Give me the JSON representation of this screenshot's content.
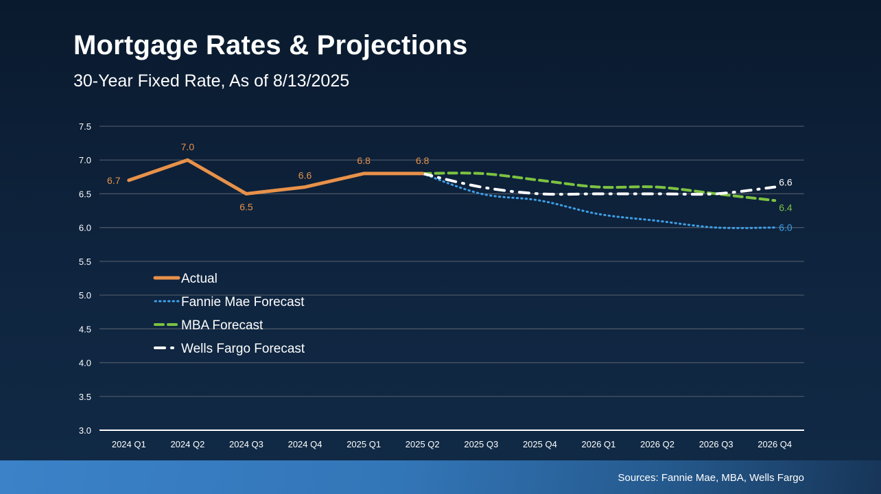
{
  "title": "Mortgage Rates & Projections",
  "subtitle": "30-Year Fixed Rate, As of 8/13/2025",
  "footer": {
    "source": "Sources: Fannie Mae, MBA, Wells Fargo"
  },
  "chart_data": {
    "type": "line",
    "categories": [
      "2024 Q1",
      "2024 Q2",
      "2024 Q3",
      "2024 Q4",
      "2025 Q1",
      "2025 Q2",
      "2025 Q3",
      "2025 Q4",
      "2026 Q1",
      "2026 Q2",
      "2026 Q3",
      "2026 Q4"
    ],
    "ylim": [
      3.0,
      7.5
    ],
    "yticks": [
      "3.0",
      "3.5",
      "4.0",
      "4.5",
      "5.0",
      "5.5",
      "6.0",
      "6.5",
      "7.0",
      "7.5"
    ],
    "grid": true,
    "legend": "left-center",
    "series": [
      {
        "name": "Actual",
        "color": "#e8914a",
        "style": "solid",
        "values": [
          6.7,
          7.0,
          6.5,
          6.6,
          6.8,
          6.8,
          null,
          null,
          null,
          null,
          null,
          null
        ],
        "labels": [
          "6.7",
          "7.0",
          "6.5",
          "6.6",
          "6.8",
          "6.8"
        ]
      },
      {
        "name": "Fannie Mae Forecast",
        "color": "#3ea0e8",
        "style": "dotted",
        "values": [
          null,
          null,
          null,
          null,
          null,
          6.8,
          6.5,
          6.4,
          6.2,
          6.1,
          6.0,
          6.0
        ],
        "end_label": "6.0"
      },
      {
        "name": "MBA Forecast",
        "color": "#7cc242",
        "style": "dashed",
        "values": [
          null,
          null,
          null,
          null,
          null,
          6.8,
          6.8,
          6.7,
          6.6,
          6.6,
          6.5,
          6.4
        ],
        "end_label": "6.4"
      },
      {
        "name": "Wells Fargo Forecast",
        "color": "#ffffff",
        "style": "dashdot",
        "values": [
          null,
          null,
          null,
          null,
          null,
          6.8,
          6.6,
          6.5,
          6.5,
          6.5,
          6.5,
          6.6
        ],
        "end_label": "6.6"
      }
    ]
  }
}
